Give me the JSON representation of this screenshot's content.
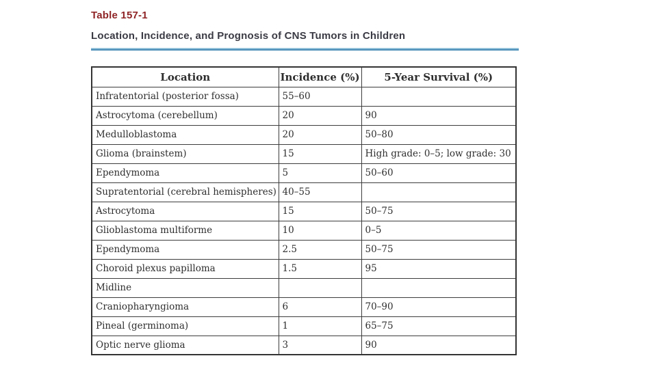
{
  "header": {
    "table_label": "Table 157-1",
    "subtitle": "Location, Incidence, and Prognosis of CNS Tumors in Children"
  },
  "colors": {
    "label_red": "#8f2426",
    "subtitle_dark": "#3a3a44",
    "rule_blue": "#4e90ba",
    "rule_blue_light": "#aed3e4",
    "table_border": "#3c3c3c",
    "text": "#2e2e2e"
  },
  "table": {
    "headers": [
      "Location",
      "Incidence (%)",
      "5-Year Survival (%)"
    ],
    "rows": [
      {
        "location": "Infratentorial (posterior fossa)",
        "incidence": "55–60",
        "survival": ""
      },
      {
        "location": "Astrocytoma (cerebellum)",
        "incidence": "20",
        "survival": "90"
      },
      {
        "location": "Medulloblastoma",
        "incidence": "20",
        "survival": "50–80"
      },
      {
        "location": "Glioma (brainstem)",
        "incidence": "15",
        "survival": "High grade: 0–5; low grade: 30"
      },
      {
        "location": "Ependymoma",
        "incidence": "5",
        "survival": "50–60"
      },
      {
        "location": "Supratentorial (cerebral hemispheres)",
        "incidence": "40–55",
        "survival": ""
      },
      {
        "location": "Astrocytoma",
        "incidence": "15",
        "survival": "50–75"
      },
      {
        "location": "Glioblastoma multiforme",
        "incidence": "10",
        "survival": "0–5"
      },
      {
        "location": "Ependymoma",
        "incidence": "2.5",
        "survival": "50–75"
      },
      {
        "location": "Choroid plexus papilloma",
        "incidence": "1.5",
        "survival": "95"
      },
      {
        "location": "Midline",
        "incidence": "",
        "survival": ""
      },
      {
        "location": "Craniopharyngioma",
        "incidence": "6",
        "survival": "70–90"
      },
      {
        "location": "Pineal (germinoma)",
        "incidence": "1",
        "survival": "65–75"
      },
      {
        "location": "Optic nerve glioma",
        "incidence": "3",
        "survival": "90"
      }
    ]
  }
}
